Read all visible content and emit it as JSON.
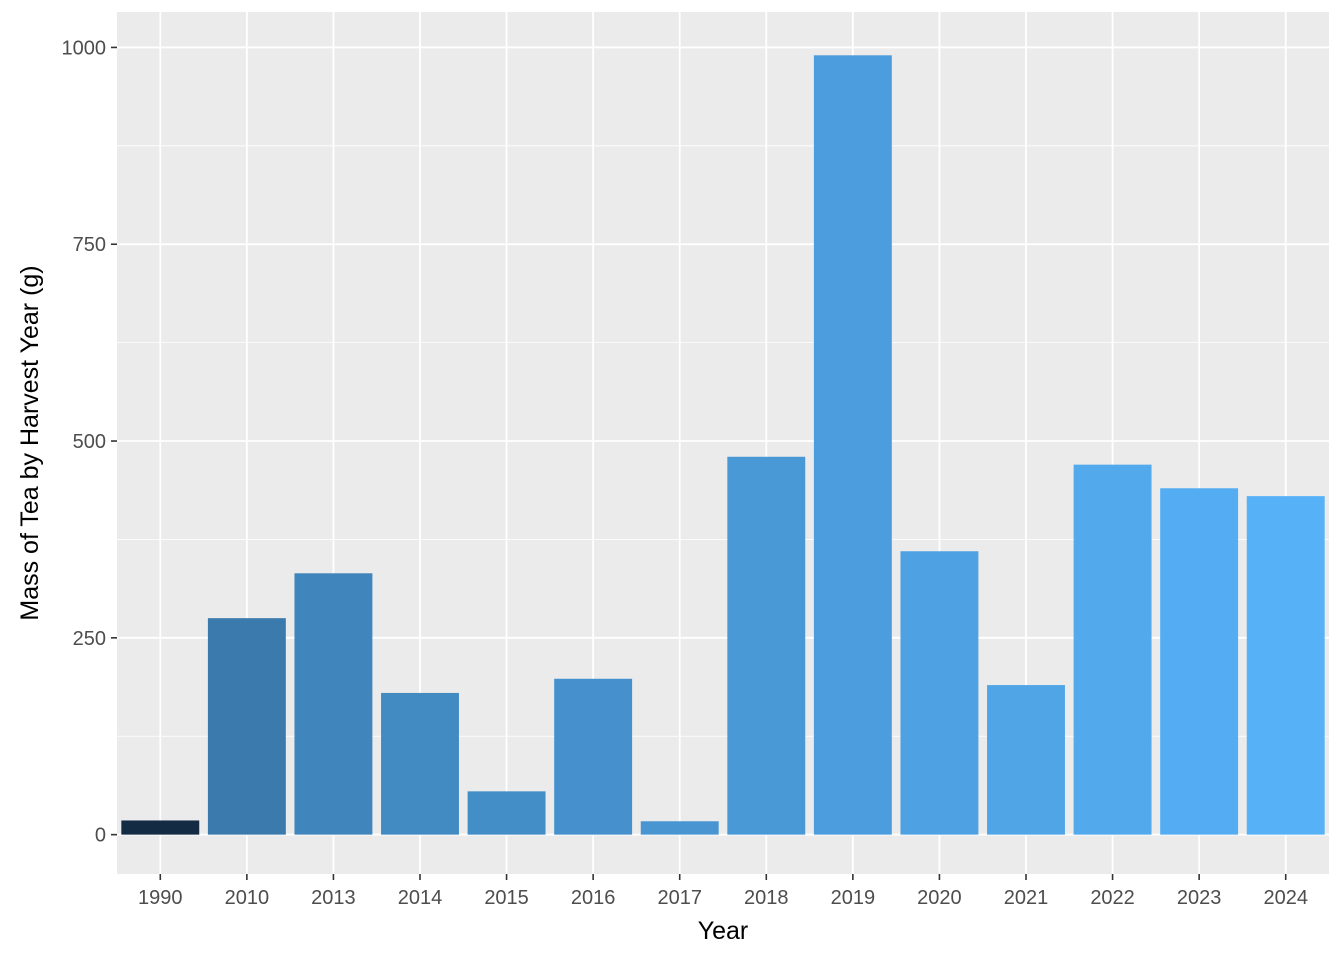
{
  "chart_data": {
    "type": "bar",
    "title": "",
    "xlabel": "Year",
    "ylabel": "Mass of Tea by Harvest Year (g)",
    "categories": [
      "1990",
      "2010",
      "2013",
      "2014",
      "2015",
      "2016",
      "2017",
      "2018",
      "2019",
      "2020",
      "2021",
      "2022",
      "2023",
      "2024"
    ],
    "values": [
      18,
      275,
      332,
      180,
      55,
      198,
      17,
      480,
      990,
      360,
      190,
      470,
      440,
      430
    ],
    "ylim": [
      -50,
      1045
    ],
    "yticks": [
      0,
      250,
      500,
      750,
      1000
    ],
    "grid": true,
    "legend": "none",
    "colors": {
      "panel_background": "#EBEBEB",
      "gridline": "#FFFFFF",
      "gradient_low": "#132B43",
      "gradient_high": "#56B1F7"
    }
  }
}
